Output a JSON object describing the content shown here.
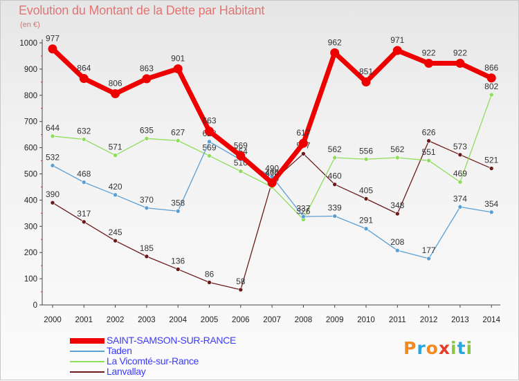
{
  "title": "Evolution du Montant de la Dette par Habitant",
  "unit": "(en €)",
  "logo": {
    "letters": [
      "P",
      "r",
      "o",
      "x",
      "i",
      "t",
      "i"
    ],
    "colors": [
      "#f28a1e",
      "#2aa6de",
      "#f28a1e",
      "#e53c2b",
      "#8cc63f",
      "#2aa6de",
      "#8cc63f"
    ]
  },
  "chart_data": {
    "type": "line",
    "x": [
      "2000",
      "2001",
      "2002",
      "2003",
      "2004",
      "2005",
      "2006",
      "2007",
      "2008",
      "2009",
      "2010",
      "2011",
      "2012",
      "2013",
      "2014"
    ],
    "ylim": [
      0,
      1000
    ],
    "yticks": [
      0,
      100,
      200,
      300,
      400,
      500,
      600,
      700,
      800,
      900,
      1000
    ],
    "grid": false,
    "legend_position": "bottom-left",
    "series": [
      {
        "name": "Lanvallay",
        "color": "#6b1a1a",
        "values": [
          390,
          317,
          245,
          185,
          136,
          86,
          58,
          470,
          577,
          460,
          405,
          348,
          626,
          573,
          521
        ],
        "labels": [
          "390",
          "317",
          "245",
          "185",
          "136",
          "86",
          "58",
          "470",
          "577",
          "460",
          "405",
          "348",
          "626",
          "573",
          "521"
        ]
      },
      {
        "name": "La Vicomté-sur-Rance",
        "color": "#8edc5a",
        "values": [
          644,
          632,
          571,
          635,
          627,
          569,
          510,
          450,
          326,
          562,
          556,
          562,
          551,
          469,
          802
        ],
        "labels": [
          "644",
          "632",
          "571",
          "635",
          "627",
          "569",
          "510",
          "450",
          "326",
          "562",
          "556",
          "562",
          "551",
          "469",
          "802"
        ]
      },
      {
        "name": "Taden",
        "color": "#5a9fd4",
        "values": [
          532,
          468,
          420,
          370,
          358,
          623,
          554,
          490,
          337,
          339,
          291,
          208,
          177,
          374,
          354
        ],
        "labels": [
          "532",
          "468",
          "420",
          "370",
          "358",
          "623",
          "554",
          "490",
          "337",
          "339",
          "291",
          "208",
          "177",
          "374",
          "354"
        ]
      },
      {
        "name": "SAINT-SAMSON-SUR-RANCE",
        "color": "#ee0000",
        "values": [
          977,
          864,
          806,
          863,
          901,
          663,
          569,
          466,
          617,
          962,
          851,
          971,
          922,
          922,
          866
        ],
        "labels": [
          "977",
          "864",
          "806",
          "863",
          "901",
          "663",
          "569",
          "466",
          "617",
          "962",
          "851",
          "971",
          "922",
          "922",
          "866"
        ]
      }
    ],
    "legend_order": [
      "SAINT-SAMSON-SUR-RANCE",
      "Taden",
      "La Vicomté-sur-Rance",
      "Lanvallay"
    ]
  }
}
